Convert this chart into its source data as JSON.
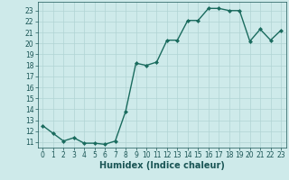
{
  "x": [
    0,
    1,
    2,
    3,
    4,
    5,
    6,
    7,
    8,
    9,
    10,
    11,
    12,
    13,
    14,
    15,
    16,
    17,
    18,
    19,
    20,
    21,
    22,
    23
  ],
  "y": [
    12.5,
    11.8,
    11.1,
    11.4,
    10.9,
    10.9,
    10.8,
    11.1,
    13.8,
    18.2,
    18.0,
    18.3,
    20.3,
    20.3,
    22.1,
    22.1,
    23.2,
    23.2,
    23.0,
    23.0,
    20.2,
    21.3,
    20.3,
    21.2
  ],
  "line_color": "#1a6b5e",
  "marker": "D",
  "marker_size": 2.0,
  "xlabel": "Humidex (Indice chaleur)",
  "ylim": [
    10.5,
    23.8
  ],
  "xlim": [
    -0.5,
    23.5
  ],
  "yticks": [
    11,
    12,
    13,
    14,
    15,
    16,
    17,
    18,
    19,
    20,
    21,
    22,
    23
  ],
  "xticks": [
    0,
    1,
    2,
    3,
    4,
    5,
    6,
    7,
    8,
    9,
    10,
    11,
    12,
    13,
    14,
    15,
    16,
    17,
    18,
    19,
    20,
    21,
    22,
    23
  ],
  "bg_color": "#ceeaea",
  "grid_color": "#b0d4d4",
  "font_color": "#1a5555",
  "xlabel_fontsize": 7,
  "tick_fontsize": 5.5,
  "linewidth": 1.0
}
